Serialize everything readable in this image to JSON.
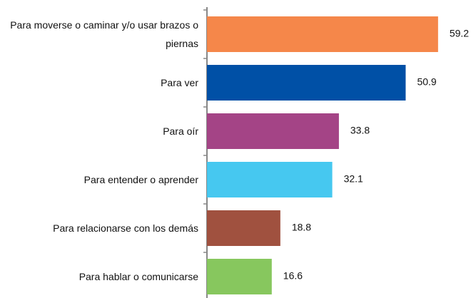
{
  "chart_data": {
    "type": "bar",
    "orientation": "horizontal",
    "categories": [
      "Para moverse o caminar y/o usar brazos o piernas",
      "Para ver",
      "Para oír",
      "Para entender o aprender",
      "Para relacionarse con los demás",
      "Para hablar o comunicarse"
    ],
    "values": [
      59.2,
      50.9,
      33.8,
      32.1,
      18.8,
      16.6
    ],
    "colors": [
      "#f5874a",
      "#0050a6",
      "#a44486",
      "#46c8f0",
      "#a0513f",
      "#87c75e"
    ],
    "xlim": [
      0,
      68
    ]
  }
}
